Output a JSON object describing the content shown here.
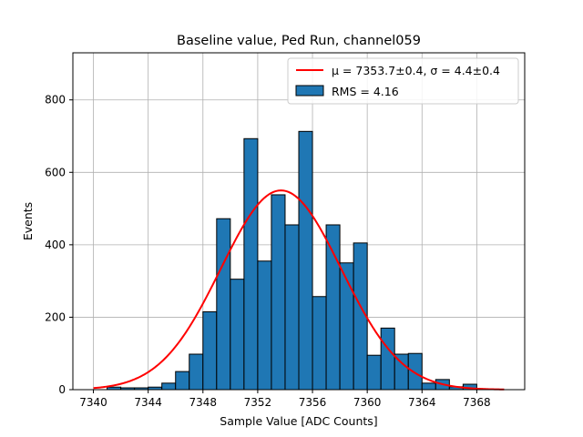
{
  "chart_data": {
    "type": "bar",
    "title": "Baseline value, Ped Run, channel059",
    "xlabel": "Sample Value [ADC Counts]",
    "ylabel": "Events",
    "xlim": [
      7338.5,
      7371.5
    ],
    "ylim": [
      0,
      930
    ],
    "grid": true,
    "legend_position": "top-right",
    "bin_width": 1,
    "x_ticks": [
      7340,
      7344,
      7348,
      7352,
      7356,
      7360,
      7364,
      7368
    ],
    "y_ticks": [
      0,
      200,
      400,
      600,
      800
    ],
    "bins": [
      {
        "x": 7341,
        "value": 7
      },
      {
        "x": 7342,
        "value": 5
      },
      {
        "x": 7343,
        "value": 5
      },
      {
        "x": 7344,
        "value": 7
      },
      {
        "x": 7345,
        "value": 18
      },
      {
        "x": 7346,
        "value": 50
      },
      {
        "x": 7347,
        "value": 98
      },
      {
        "x": 7348,
        "value": 215
      },
      {
        "x": 7349,
        "value": 472
      },
      {
        "x": 7350,
        "value": 305
      },
      {
        "x": 7351,
        "value": 693
      },
      {
        "x": 7352,
        "value": 355
      },
      {
        "x": 7353,
        "value": 538
      },
      {
        "x": 7354,
        "value": 455
      },
      {
        "x": 7355,
        "value": 713
      },
      {
        "x": 7356,
        "value": 257
      },
      {
        "x": 7357,
        "value": 455
      },
      {
        "x": 7358,
        "value": 350
      },
      {
        "x": 7359,
        "value": 405
      },
      {
        "x": 7360,
        "value": 95
      },
      {
        "x": 7361,
        "value": 170
      },
      {
        "x": 7362,
        "value": 98
      },
      {
        "x": 7363,
        "value": 100
      },
      {
        "x": 7364,
        "value": 18
      },
      {
        "x": 7365,
        "value": 28
      },
      {
        "x": 7366,
        "value": 8
      },
      {
        "x": 7367,
        "value": 15
      }
    ],
    "fit": {
      "mu": 7353.7,
      "sigma": 4.4,
      "amplitude": 550,
      "x_range": [
        7340,
        7370
      ]
    },
    "series": [
      {
        "name": "μ = 7353.7±0.4, σ = 4.4±0.4",
        "type": "line",
        "color": "#ff0000"
      },
      {
        "name": "RMS = 4.16",
        "type": "bar",
        "color": "#1f77b4"
      }
    ]
  }
}
